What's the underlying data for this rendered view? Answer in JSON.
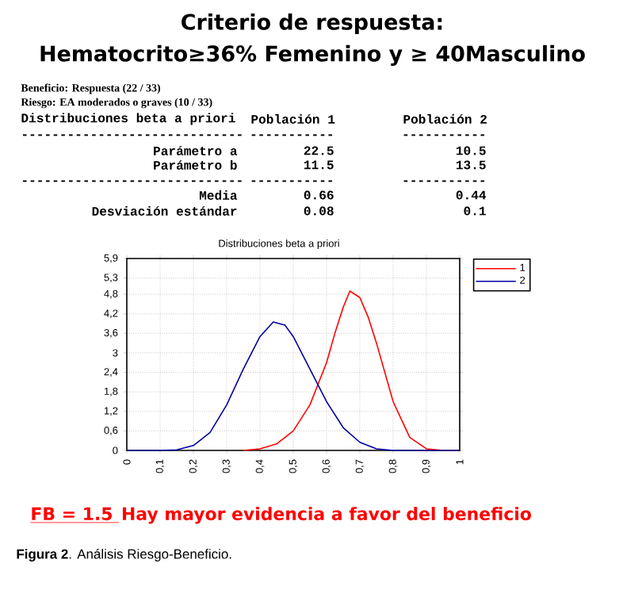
{
  "chart_data": {
    "type": "line",
    "title": "Criterio de respuesta:",
    "subtitle": "Hematocrito≥36%  Femenino y ≥ 40Masculino",
    "annotations": [
      "Beneficio: Respuesta (22 / 33)",
      "Riesgo: EA moderados o graves (10 / 33)",
      "Distribuciones beta a priori",
      "Población 1",
      "Población 2",
      "-----------------------------",
      "-----------",
      "-----------",
      "Parámetro a",
      "22.5",
      "10.5",
      "Parámetro b",
      "11.5",
      "13.5",
      "-----------------------------",
      "-----------",
      "-----------",
      "Media",
      "0.66",
      "0.44",
      "Desviación estándar",
      "0.08",
      "0.1",
      "Distribuciones beta a priori",
      "FB = 1.5",
      "Hay mayor evidencia a favor del beneficio",
      "**Figura 2**. Análisis Riesgo-Beneficio."
    ],
    "x": [
      0.35,
      0.4,
      0.45,
      0.5,
      0.55,
      0.6,
      0.625,
      0.65,
      0.67,
      0.7,
      0.725,
      0.75,
      0.8,
      0.85,
      0.9,
      0.95,
      1
    ],
    "series": [
      {
        "name": "1",
        "color": "#ff0000",
        "values": [
          0,
          0.05,
          0.2,
          0.6,
          1.4,
          2.7,
          3.6,
          4.4,
          4.9,
          4.7,
          4.1,
          3.3,
          1.5,
          0.4,
          0.05,
          0,
          0
        ]
      },
      {
        "name": "2",
        "color": "#0000a0",
        "x": [
          0,
          0.1,
          0.15,
          0.2,
          0.25,
          0.3,
          0.35,
          0.4,
          0.44,
          0.475,
          0.5,
          0.55,
          0.6,
          0.65,
          0.7,
          0.75,
          0.8,
          0.9,
          1
        ],
        "values": [
          0,
          0,
          0.02,
          0.15,
          0.55,
          1.4,
          2.5,
          3.5,
          3.95,
          3.85,
          3.5,
          2.5,
          1.5,
          0.7,
          0.25,
          0.05,
          0,
          0,
          0
        ]
      }
    ],
    "xlim": [
      0,
      1
    ],
    "xticks": [
      0,
      {
        "value": 0.1,
        "label": "0,1"
      },
      {
        "value": 0.2,
        "label": "0,2"
      },
      {
        "value": 0.3,
        "label": "0,3"
      },
      {
        "value": 0.4,
        "label": "0,4"
      },
      {
        "value": 0.5,
        "label": "0,5"
      },
      {
        "value": 0.6,
        "label": "0,6"
      },
      {
        "value": 0.7,
        "label": "0,7"
      },
      {
        "value": 0.8,
        "label": "0,8"
      },
      {
        "value": 0.9,
        "label": "0,9"
      },
      1
    ],
    "ylim": [
      0,
      5.9
    ],
    "yticks": [
      0,
      {
        "value": 0.6,
        "label": "0,6"
      },
      {
        "value": 1.2,
        "label": "1,2"
      },
      {
        "value": 1.8,
        "label": "1,8"
      },
      {
        "value": 2.4,
        "label": "2,4"
      },
      3,
      {
        "value": 3.6,
        "label": "3,6"
      },
      {
        "value": 4.2,
        "label": "4,2"
      },
      {
        "value": 4.8,
        "label": "4,8"
      },
      {
        "value": 5.3,
        "label": "5,3"
      },
      {
        "value": 5.9,
        "label": "5,9"
      }
    ],
    "grid": true,
    "legend": "top right",
    "marker": "none",
    "line_style": "solid"
  }
}
